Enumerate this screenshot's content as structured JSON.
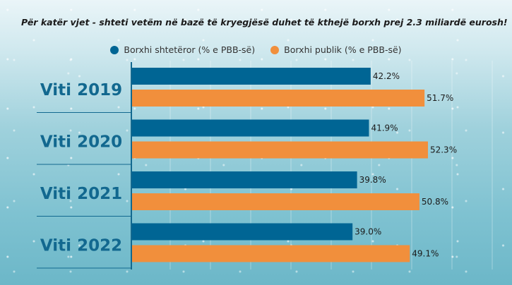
{
  "title": "Për katër vjet - shteti vetëm në bazë të kryegjësë duhet të kthejë borxh prej 2.3 miliardë eurosh!",
  "chart_data": {
    "type": "bar",
    "orientation": "horizontal",
    "categories": [
      "Viti 2019",
      "Viti 2020",
      "Viti 2021",
      "Viti 2022"
    ],
    "series": [
      {
        "name": "Borxhi shtetëror (% e PBB-së)",
        "color": "#006594",
        "values": [
          42.2,
          41.9,
          39.8,
          39.0
        ],
        "labels": [
          "42.2%",
          "41.9%",
          "39.8%",
          "39.0%"
        ]
      },
      {
        "name": "Borxhi publik (% e PBB-së)",
        "color": "#f18f3c",
        "values": [
          51.7,
          52.3,
          50.8,
          49.1
        ],
        "labels": [
          "51.7%",
          "52.3%",
          "50.8%",
          "49.1%"
        ]
      }
    ],
    "legend_position": "top-center",
    "grid": true
  }
}
